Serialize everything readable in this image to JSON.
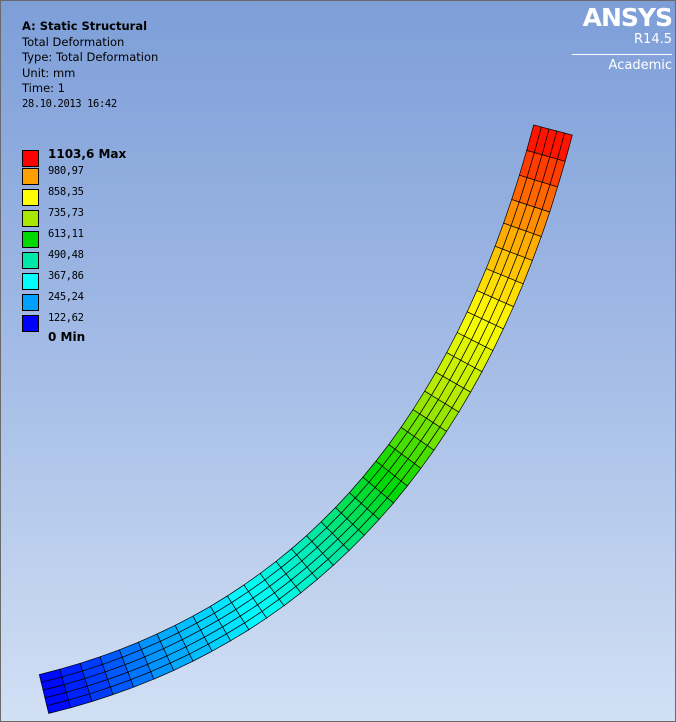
{
  "info": {
    "title": "A: Static Structural",
    "result": "Total Deformation",
    "type": "Type: Total Deformation",
    "unit": "Unit: mm",
    "time": "Time: 1",
    "date": "28.10.2013 16:42"
  },
  "legend": {
    "colors": [
      "#ff0000",
      "#ffa000",
      "#ffff00",
      "#a8e800",
      "#00d800",
      "#00e8a8",
      "#00ffff",
      "#00a0ff",
      "#0000ff"
    ],
    "labels": [
      "1103,6 Max",
      "980,97",
      "858,35",
      "735,73",
      "613,11",
      "490,48",
      "367,86",
      "245,24",
      "122,62",
      "0 Min"
    ]
  },
  "logo": {
    "brand": "ANSYS",
    "version": "R14.5",
    "edition": "Academic"
  }
}
